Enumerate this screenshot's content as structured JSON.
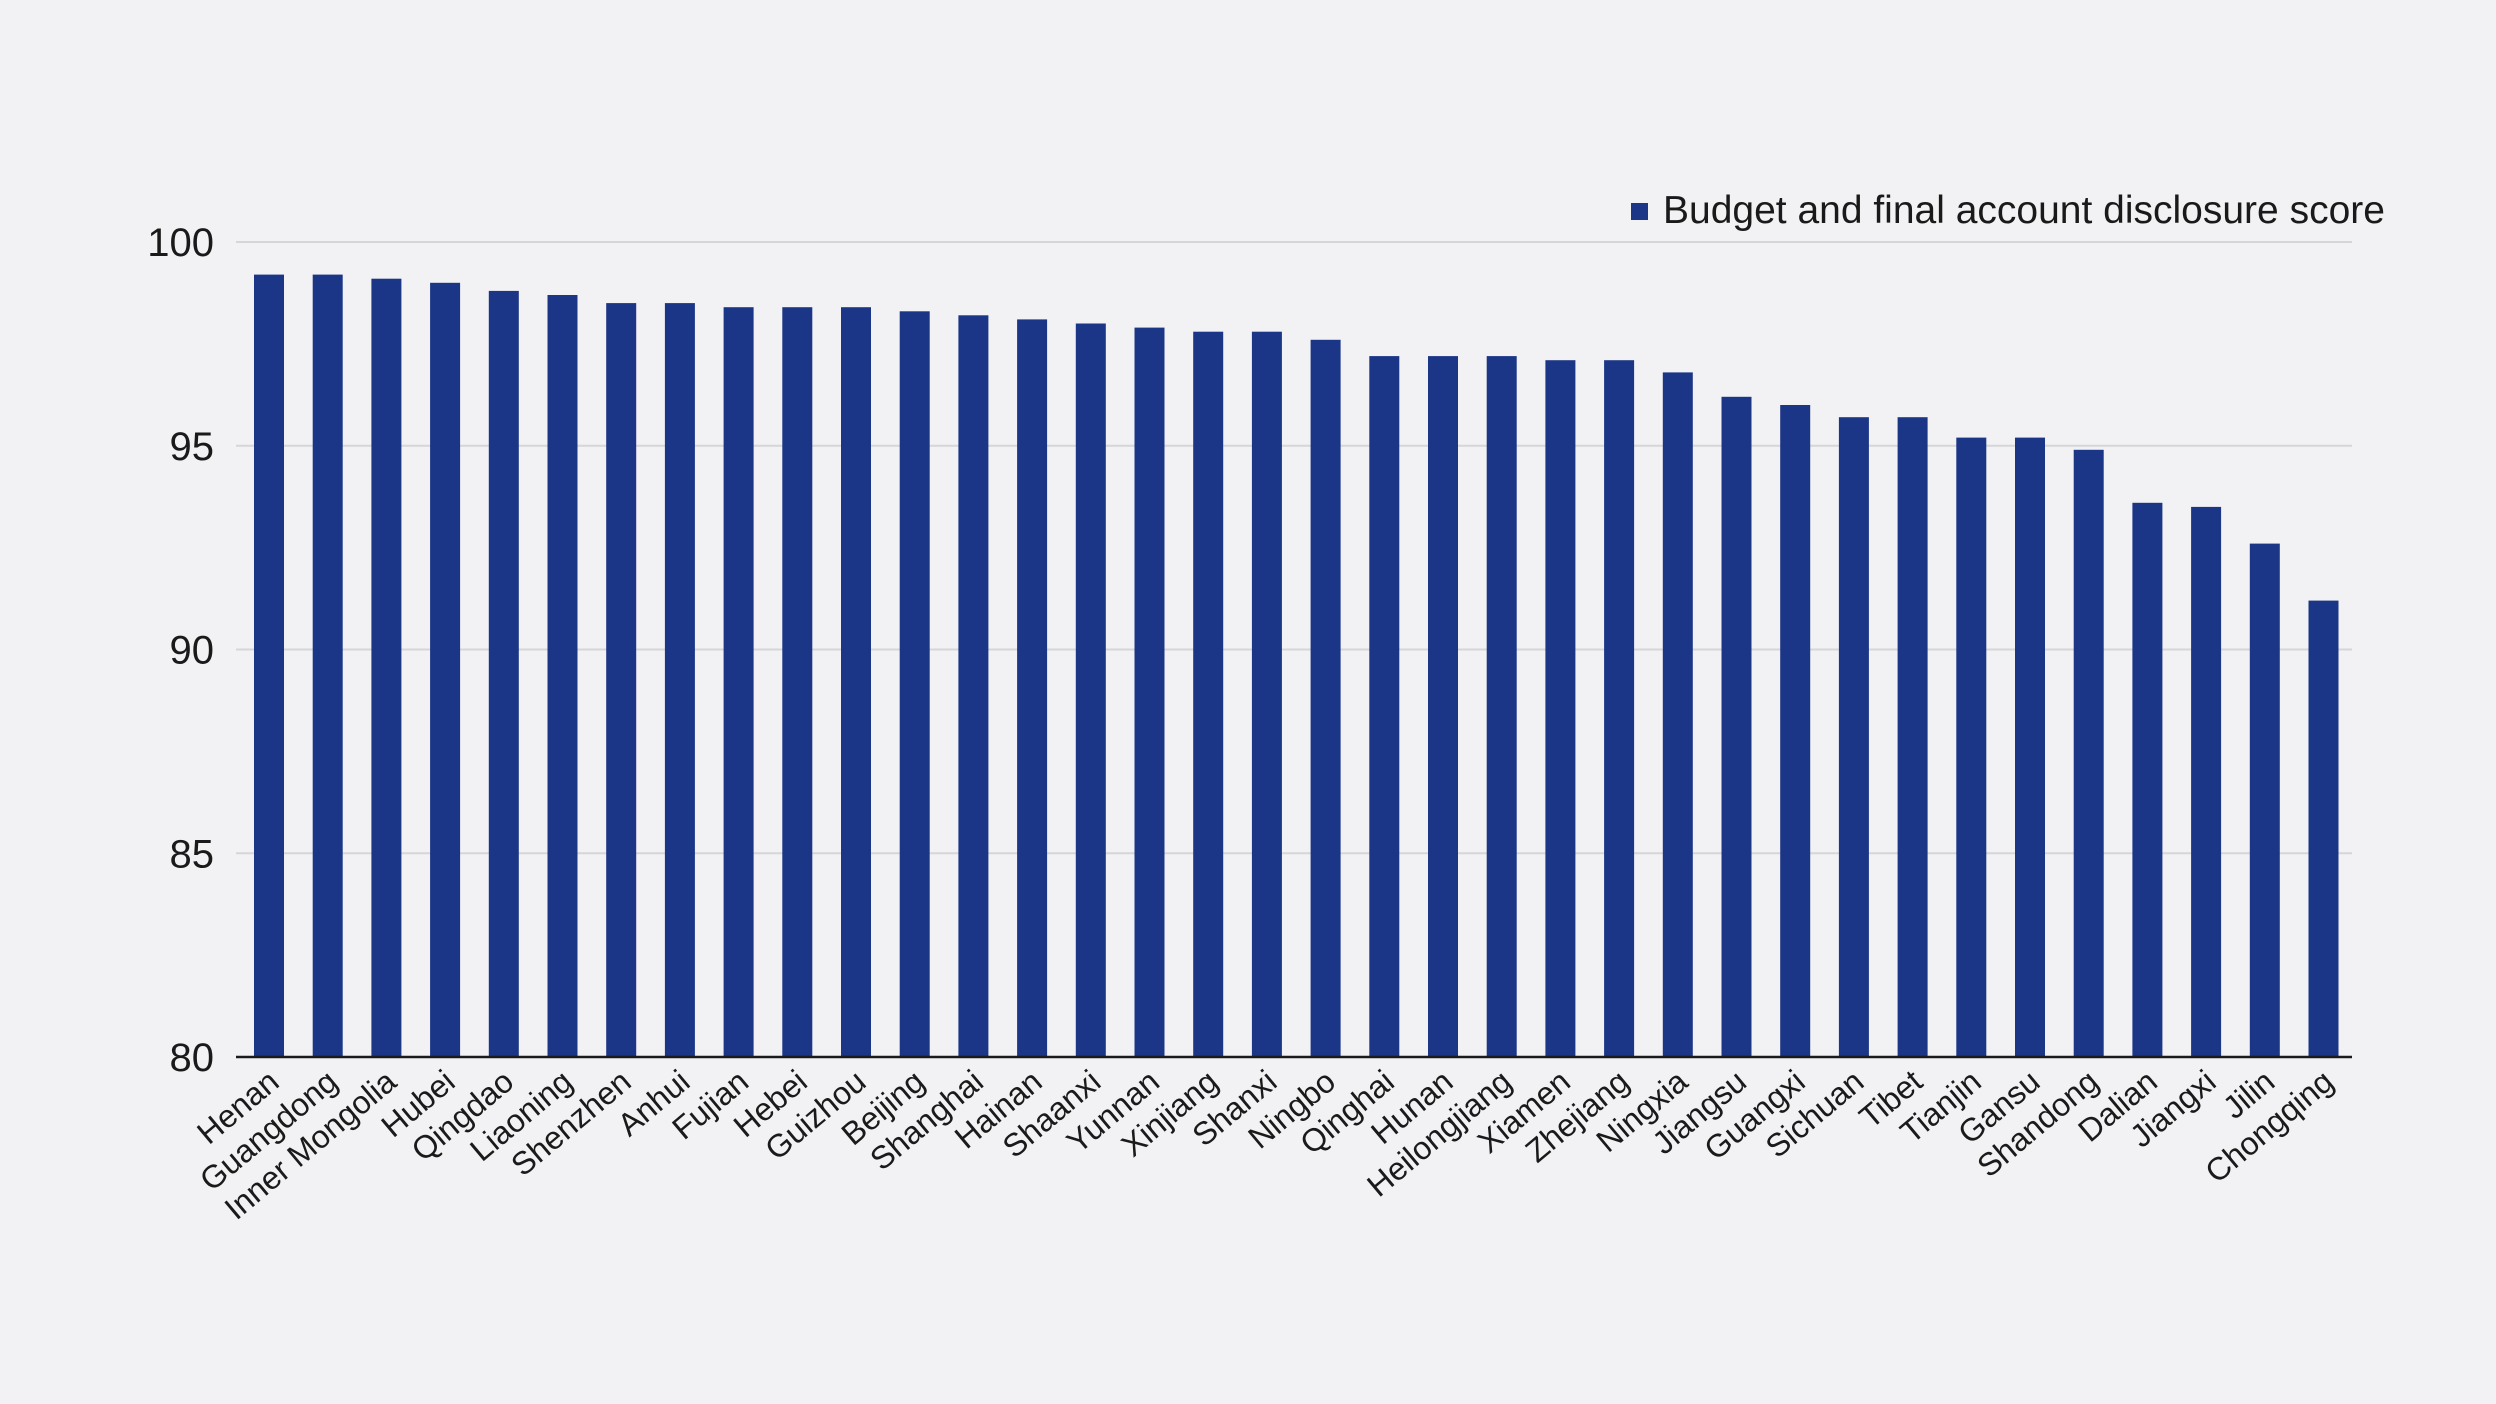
{
  "chart_data": {
    "type": "bar",
    "title": "",
    "xlabel": "",
    "ylabel": "",
    "ylim": [
      80,
      100
    ],
    "yticks": [
      80,
      85,
      90,
      95,
      100
    ],
    "grid": true,
    "legend_position": "top-right",
    "categories": [
      "Henan",
      "Guangdong",
      "Inner Mongolia",
      "Hubei",
      "Qingdao",
      "Liaoning",
      "Shenzhen",
      "Anhui",
      "Fujian",
      "Hebei",
      "Guizhou",
      "Beijing",
      "Shanghai",
      "Hainan",
      "Shaanxi",
      "Yunnan",
      "Xinjiang",
      "Shanxi",
      "Ningbo",
      "Qinghai",
      "Hunan",
      "Heilongjiang",
      "Xiamen",
      "Zhejiang",
      "Ningxia",
      "Jiangsu",
      "Guangxi",
      "Sichuan",
      "Tibet",
      "Tianjin",
      "Gansu",
      "Shandong",
      "Dalian",
      "Jiangxi",
      "Jilin",
      "Chongqing"
    ],
    "series": [
      {
        "name": "Budget and final account disclosure score",
        "color": "#1b3587",
        "values": [
          99.2,
          99.2,
          99.1,
          99.0,
          98.8,
          98.7,
          98.5,
          98.5,
          98.4,
          98.4,
          98.4,
          98.3,
          98.2,
          98.1,
          98.0,
          97.9,
          97.8,
          97.8,
          97.6,
          97.2,
          97.2,
          97.2,
          97.1,
          97.1,
          96.8,
          96.2,
          96.0,
          95.7,
          95.7,
          95.2,
          95.2,
          94.9,
          93.6,
          93.5,
          92.6,
          91.2
        ]
      }
    ]
  }
}
